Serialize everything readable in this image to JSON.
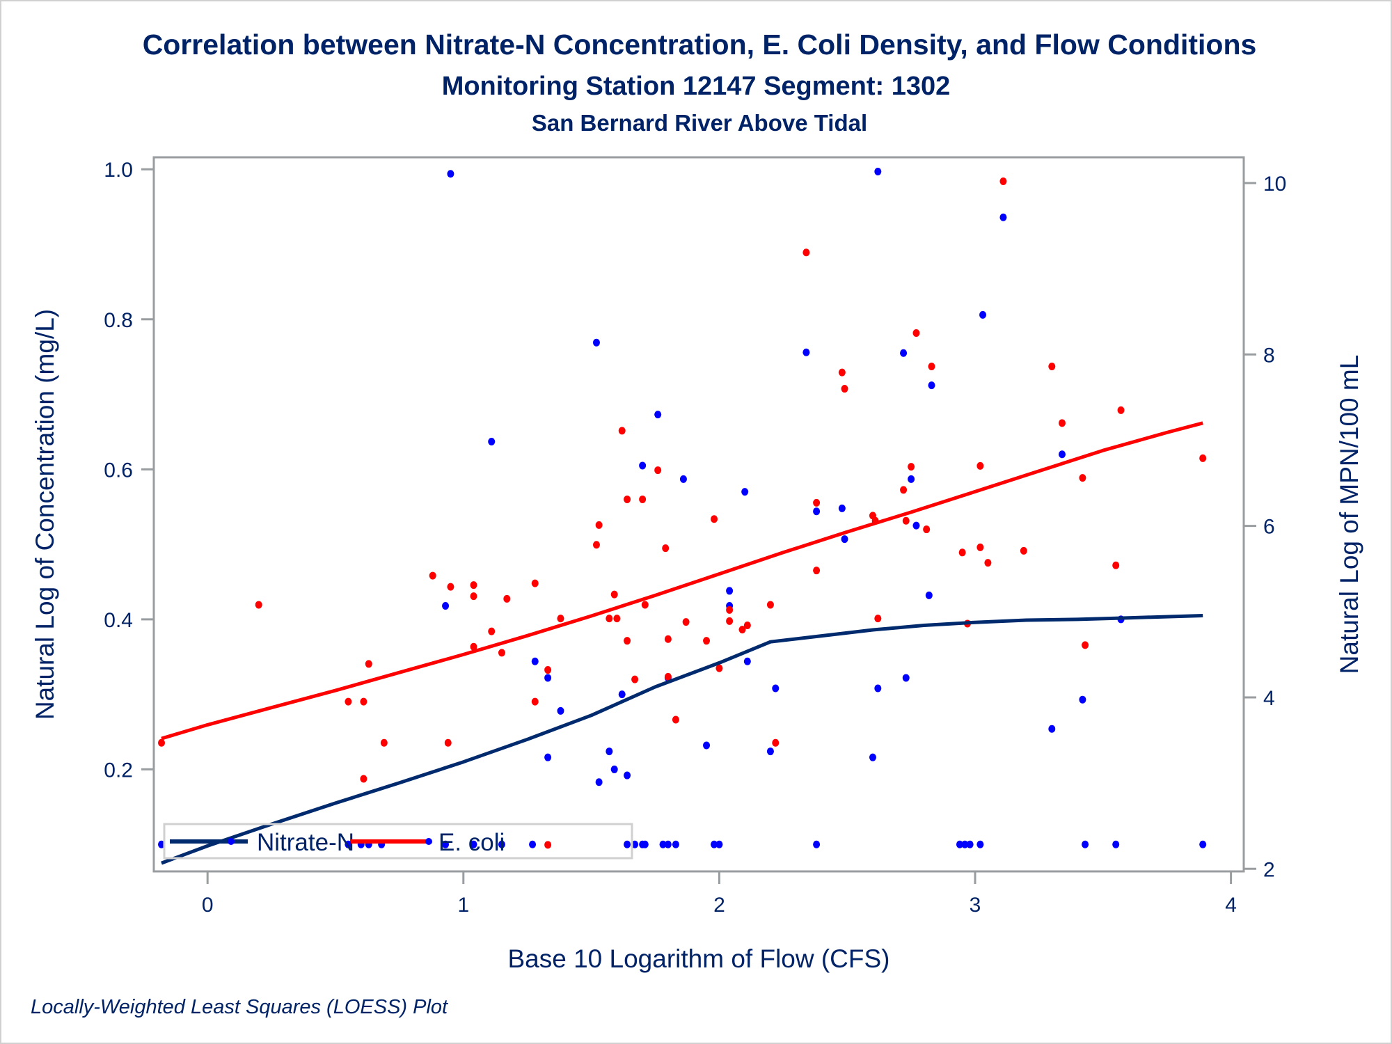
{
  "chart_data": {
    "type": "scatter",
    "title": "Correlation between Nitrate-N Concentration, E. Coli Density, and Flow Conditions",
    "subtitle": "Monitoring Station 12147 Segment: 1302",
    "subtitle2": "San Bernard River Above Tidal",
    "footnote": "Locally-Weighted Least Squares (LOESS) Plot",
    "xlabel": "Base 10 Logarithm of Flow (CFS)",
    "ylabel": "Natural Log of Concentration (mg/L)",
    "y2label": "Natural Log of MPN/100 mL",
    "xlim": [
      -0.21,
      4.05
    ],
    "ylim": [
      0.064,
      1.016
    ],
    "y2lim": [
      1.97,
      10.3
    ],
    "xticks": [
      0,
      1,
      2,
      3,
      4
    ],
    "xtick_labels": [
      "0",
      "1",
      "2",
      "3",
      "4"
    ],
    "yticks": [
      0.2,
      0.4,
      0.6,
      0.8,
      1.0
    ],
    "ytick_labels": [
      "0.2",
      "0.4",
      "0.6",
      "0.8",
      "1.0"
    ],
    "y2ticks": [
      2,
      4,
      6,
      8,
      10
    ],
    "y2tick_labels": [
      "2",
      "4",
      "6",
      "8",
      "10"
    ],
    "grid": false,
    "legend": {
      "position": "bottom-left-inside",
      "entries": [
        "Nitrate-N",
        "E. coli"
      ]
    },
    "series": [
      {
        "name": "Nitrate-N",
        "axis": "left",
        "color": "#0000ff",
        "fit_color": "#002a6e",
        "points": [
          [
            -0.18,
            0.1
          ],
          [
            0.55,
            0.1
          ],
          [
            0.6,
            0.1
          ],
          [
            0.63,
            0.1
          ],
          [
            0.68,
            0.1
          ],
          [
            0.93,
            0.1
          ],
          [
            1.04,
            0.1
          ],
          [
            1.15,
            0.1
          ],
          [
            1.27,
            0.1
          ],
          [
            0.93,
            0.418
          ],
          [
            0.95,
            0.994
          ],
          [
            1.11,
            0.637
          ],
          [
            1.28,
            0.344
          ],
          [
            1.33,
            0.322
          ],
          [
            1.33,
            0.216
          ],
          [
            1.38,
            0.278
          ],
          [
            1.52,
            0.769
          ],
          [
            1.53,
            0.183
          ],
          [
            1.57,
            0.224
          ],
          [
            1.59,
            0.2
          ],
          [
            1.62,
            0.3
          ],
          [
            1.64,
            0.192
          ],
          [
            1.64,
            0.1
          ],
          [
            1.67,
            0.1
          ],
          [
            1.7,
            0.1
          ],
          [
            1.71,
            0.1
          ],
          [
            1.7,
            0.605
          ],
          [
            1.76,
            0.673
          ],
          [
            1.78,
            0.1
          ],
          [
            1.8,
            0.1
          ],
          [
            1.8,
            0.322
          ],
          [
            1.83,
            0.1
          ],
          [
            1.86,
            0.587
          ],
          [
            1.95,
            0.232
          ],
          [
            1.98,
            0.1
          ],
          [
            2.0,
            0.1
          ],
          [
            2.04,
            0.438
          ],
          [
            2.04,
            0.418
          ],
          [
            2.1,
            0.57
          ],
          [
            2.11,
            0.344
          ],
          [
            2.2,
            0.224
          ],
          [
            2.22,
            0.308
          ],
          [
            2.34,
            0.756
          ],
          [
            2.38,
            0.544
          ],
          [
            2.38,
            0.1
          ],
          [
            2.48,
            0.548
          ],
          [
            2.49,
            0.507
          ],
          [
            2.6,
            0.216
          ],
          [
            2.62,
            0.997
          ],
          [
            2.62,
            0.308
          ],
          [
            2.72,
            0.755
          ],
          [
            2.73,
            0.322
          ],
          [
            2.75,
            0.587
          ],
          [
            2.77,
            0.525
          ],
          [
            2.82,
            0.432
          ],
          [
            2.83,
            0.712
          ],
          [
            2.94,
            0.1
          ],
          [
            2.96,
            0.1
          ],
          [
            2.98,
            0.1
          ],
          [
            3.02,
            0.1
          ],
          [
            3.03,
            0.806
          ],
          [
            3.11,
            0.936
          ],
          [
            3.3,
            0.254
          ],
          [
            3.34,
            0.62
          ],
          [
            3.42,
            0.293
          ],
          [
            3.43,
            0.1
          ],
          [
            3.55,
            0.1
          ],
          [
            3.57,
            0.4
          ],
          [
            3.89,
            0.1
          ]
        ],
        "loess": [
          [
            -0.18,
            0.075
          ],
          [
            0.0,
            0.098
          ],
          [
            0.25,
            0.127
          ],
          [
            0.5,
            0.155
          ],
          [
            0.75,
            0.182
          ],
          [
            1.0,
            0.21
          ],
          [
            1.25,
            0.24
          ],
          [
            1.5,
            0.272
          ],
          [
            1.75,
            0.31
          ],
          [
            2.0,
            0.342
          ],
          [
            2.1,
            0.356
          ],
          [
            2.2,
            0.37
          ],
          [
            2.4,
            0.378
          ],
          [
            2.6,
            0.386
          ],
          [
            2.8,
            0.392
          ],
          [
            3.0,
            0.396
          ],
          [
            3.2,
            0.399
          ],
          [
            3.4,
            0.4
          ],
          [
            3.6,
            0.402
          ],
          [
            3.89,
            0.405
          ]
        ]
      },
      {
        "name": "E. coli",
        "axis": "right",
        "color": "#ff0000",
        "fit_color": "#ff0000",
        "points": [
          [
            -0.18,
            3.47
          ],
          [
            0.2,
            5.08
          ],
          [
            0.55,
            3.95
          ],
          [
            0.61,
            3.95
          ],
          [
            0.61,
            3.05
          ],
          [
            0.63,
            4.39
          ],
          [
            0.69,
            3.47
          ],
          [
            0.88,
            5.42
          ],
          [
            0.94,
            3.47
          ],
          [
            0.95,
            5.29
          ],
          [
            1.04,
            5.31
          ],
          [
            1.04,
            5.18
          ],
          [
            1.04,
            4.59
          ],
          [
            1.11,
            4.77
          ],
          [
            1.15,
            4.52
          ],
          [
            1.17,
            5.15
          ],
          [
            1.28,
            3.95
          ],
          [
            1.28,
            5.33
          ],
          [
            1.33,
            4.32
          ],
          [
            1.33,
            2.28
          ],
          [
            1.38,
            4.92
          ],
          [
            1.52,
            5.78
          ],
          [
            1.53,
            6.01
          ],
          [
            1.57,
            4.92
          ],
          [
            1.59,
            5.2
          ],
          [
            1.6,
            4.92
          ],
          [
            1.62,
            7.11
          ],
          [
            1.64,
            4.66
          ],
          [
            1.64,
            6.31
          ],
          [
            1.67,
            4.21
          ],
          [
            1.7,
            6.31
          ],
          [
            1.71,
            5.08
          ],
          [
            1.76,
            6.65
          ],
          [
            1.79,
            5.74
          ],
          [
            1.8,
            4.68
          ],
          [
            1.8,
            4.24
          ],
          [
            1.83,
            3.74
          ],
          [
            1.87,
            4.88
          ],
          [
            1.95,
            4.66
          ],
          [
            1.98,
            6.08
          ],
          [
            2.0,
            4.34
          ],
          [
            2.04,
            4.89
          ],
          [
            2.04,
            5.02
          ],
          [
            2.09,
            4.79
          ],
          [
            2.11,
            4.84
          ],
          [
            2.2,
            5.08
          ],
          [
            2.22,
            3.47
          ],
          [
            2.34,
            9.19
          ],
          [
            2.38,
            5.48
          ],
          [
            2.38,
            6.27
          ],
          [
            2.48,
            7.79
          ],
          [
            2.49,
            7.6
          ],
          [
            2.6,
            6.12
          ],
          [
            2.61,
            6.06
          ],
          [
            2.62,
            4.92
          ],
          [
            2.72,
            6.42
          ],
          [
            2.73,
            6.06
          ],
          [
            2.75,
            6.69
          ],
          [
            2.77,
            8.25
          ],
          [
            2.81,
            5.96
          ],
          [
            2.83,
            7.86
          ],
          [
            2.95,
            5.69
          ],
          [
            2.97,
            4.86
          ],
          [
            3.02,
            5.75
          ],
          [
            3.02,
            6.7
          ],
          [
            3.05,
            5.57
          ],
          [
            3.11,
            10.02
          ],
          [
            3.19,
            5.71
          ],
          [
            3.3,
            7.86
          ],
          [
            3.34,
            7.2
          ],
          [
            3.42,
            6.56
          ],
          [
            3.43,
            4.61
          ],
          [
            3.55,
            5.54
          ],
          [
            3.57,
            7.35
          ],
          [
            3.89,
            6.79
          ]
        ],
        "loess": [
          [
            -0.18,
            3.52
          ],
          [
            0.0,
            3.68
          ],
          [
            0.25,
            3.88
          ],
          [
            0.5,
            4.08
          ],
          [
            0.75,
            4.29
          ],
          [
            1.0,
            4.5
          ],
          [
            1.25,
            4.72
          ],
          [
            1.5,
            4.95
          ],
          [
            1.75,
            5.19
          ],
          [
            2.0,
            5.44
          ],
          [
            2.25,
            5.69
          ],
          [
            2.5,
            5.93
          ],
          [
            2.75,
            6.16
          ],
          [
            3.0,
            6.4
          ],
          [
            3.25,
            6.64
          ],
          [
            3.5,
            6.88
          ],
          [
            3.75,
            7.09
          ],
          [
            3.89,
            7.2
          ]
        ]
      }
    ]
  },
  "colors": {
    "text": "#002266",
    "axis": "#999da0",
    "nitrate_marker": "#0000ff",
    "nitrate_line": "#002a6e",
    "ecoli": "#ff0000"
  }
}
